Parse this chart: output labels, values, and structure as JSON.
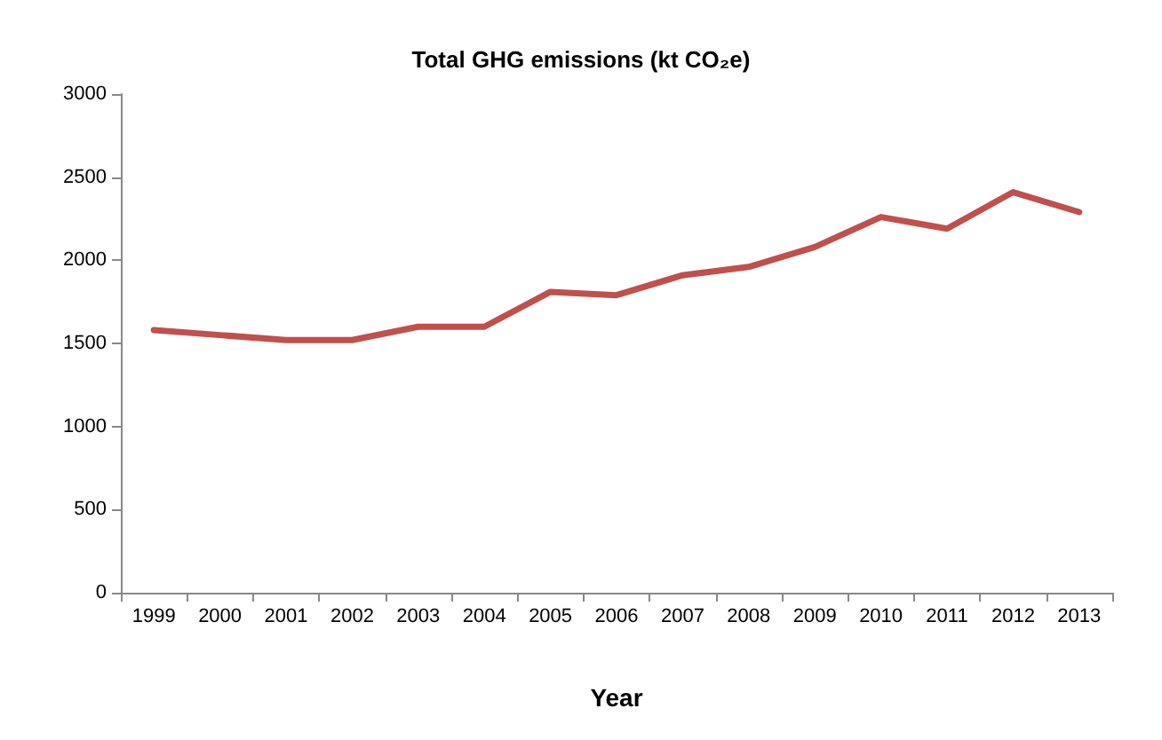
{
  "chart_data": {
    "type": "line",
    "title": "Total GHG emissions (kt CO₂e)",
    "xlabel": "Year",
    "categories": [
      "1999",
      "2000",
      "2001",
      "2002",
      "2003",
      "2004",
      "2005",
      "2006",
      "2007",
      "2008",
      "2009",
      "2010",
      "2011",
      "2012",
      "2013"
    ],
    "series": [
      {
        "color": "#c0504d",
        "values": [
          1580,
          1550,
          1520,
          1520,
          1600,
          1600,
          1810,
          1790,
          1910,
          1960,
          2080,
          2260,
          2190,
          2410,
          2290
        ]
      }
    ],
    "ylim": [
      0,
      3000
    ],
    "yticks": [
      0,
      500,
      1000,
      1500,
      2000,
      2500,
      3000
    ],
    "grid": false,
    "marker": "none",
    "line_style": "solid"
  }
}
